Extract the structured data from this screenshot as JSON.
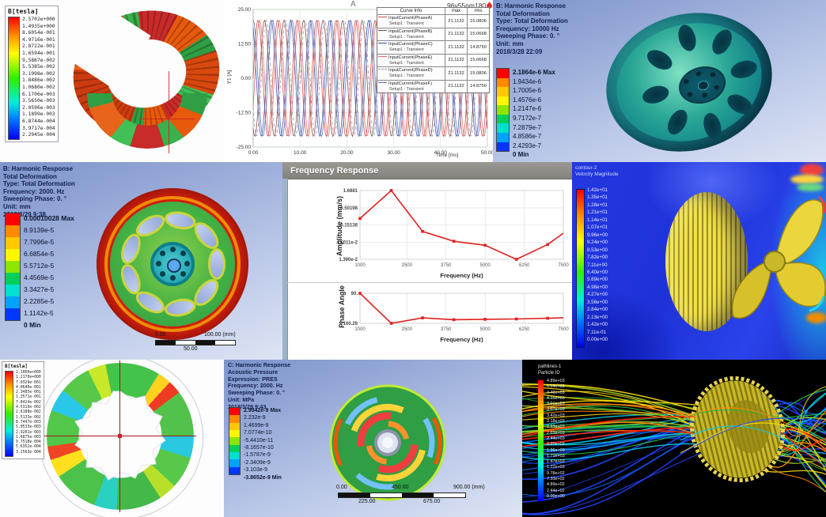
{
  "colors": {
    "ansys_bands": [
      "#ff0000",
      "#ff8a00",
      "#ffc800",
      "#fff600",
      "#8ce600",
      "#00d05a",
      "#00e0d0",
      "#00a2ff",
      "#0036ff"
    ],
    "plot_red": "#e02020"
  },
  "panels": {
    "maxwell_stator": {
      "legend_title": "B[tesla]",
      "legend_values": [
        "2.5702e+000",
        "1.4935e+000",
        "8.6054e-001",
        "4.9716e-001",
        "2.8722e-001",
        "1.6594e-001",
        "9.5867e-002",
        "5.5385e-002",
        "3.1998e-002",
        "1.8486e-002",
        "1.0680e-002",
        "6.1706e-003",
        "3.5650e-003",
        "2.0596e-003",
        "1.1899e-003",
        "6.8744e-004",
        "3.9717e-004",
        "2.2945e-004"
      ]
    },
    "current_plot": {
      "corner_label": "A",
      "title": "96v55nm180",
      "legend_table": {
        "headers": [
          "Curve Info",
          "max",
          "rms"
        ],
        "rows": [
          {
            "label": "InputCurrent(PhaseA)",
            "sub": "Setup1 : Transient",
            "max": "21.1132",
            "rms": "15.0806",
            "color": "#d04a4a",
            "dash": ""
          },
          {
            "label": "InputCurrent(PhaseB)",
            "sub": "Setup1 : Transient",
            "max": "21.1132",
            "rms": "15.0668",
            "color": "#8a4848",
            "dash": ""
          },
          {
            "label": "InputCurrent(PhaseC)",
            "sub": "Setup1 : Transient",
            "max": "21.1132",
            "rms": "14.8750",
            "color": "#3c50a0",
            "dash": ""
          },
          {
            "label": "InputCurrent(PhaseE)",
            "sub": "Setup1 : Transient",
            "max": "21.1132",
            "rms": "15.0668",
            "color": "#e06a6a",
            "dash": ""
          },
          {
            "label": "InputCurrent(PhaseD)",
            "sub": "Setup1 : Transient",
            "max": "21.1132",
            "rms": "15.0806",
            "color": "#9a9aa0",
            "dash": "4 3"
          },
          {
            "label": "InputCurrent(PhaseF)",
            "sub": "Setup1 : Transient",
            "max": "21.1132",
            "rms": "14.8750",
            "color": "#5a6cc0",
            "dash": ""
          }
        ]
      }
    },
    "harmonic_10000": {
      "header": [
        "B: Harmonic Response",
        "Total Deformation",
        "Type: Total Deformation",
        "Frequency: 10000 Hz",
        "Sweeping Phase: 0. °",
        "Unit: mm",
        "2018/3/28 22:09"
      ],
      "legend": [
        "2.1864e-6 Max",
        "1.9434e-6",
        "1.7005e-6",
        "1.4576e-6",
        "1.2147e-6",
        "9.7172e-7",
        "7.2879e-7",
        "4.8586e-7",
        "2.4293e-7",
        "0 Min"
      ]
    },
    "harmonic_2000": {
      "header": [
        "B: Harmonic Response",
        "Total Deformation",
        "Type: Total Deformation",
        "Frequency: 2000. Hz",
        "Sweeping Phase: 0. °",
        "Unit: mm",
        "2018/3/29 9:38"
      ],
      "legend": [
        "0.00010028 Max",
        "8.9139e-5",
        "7.7996e-5",
        "6.6854e-5",
        "5.5712e-5",
        "4.4569e-5",
        "3.3427e-5",
        "2.2285e-5",
        "1.1142e-5",
        "0 Min"
      ],
      "scale_bar": {
        "left": "0.00",
        "right": "100.00 (mm)",
        "mid": "50.00"
      }
    },
    "freq_response_window": {
      "title": "Frequency Response"
    },
    "cfd_velocity": {
      "legend_title_lines": [
        "contour-2",
        "Velocity Magnitude"
      ],
      "legend_values": [
        "1.42e+01",
        "1.35e+01",
        "1.28e+01",
        "1.21e+01",
        "1.14e+01",
        "1.07e+01",
        "9.96e+00",
        "9.24e+00",
        "8.53e+00",
        "7.82e+00",
        "7.11e+00",
        "6.40e+00",
        "5.69e+00",
        "4.98e+00",
        "4.27e+00",
        "3.56e+00",
        "2.84e+00",
        "2.13e+00",
        "1.42e+00",
        "7.11e-01",
        "0.00e+00"
      ]
    },
    "maxwell_rotor": {
      "legend_title": "B[tesla]",
      "legend_values": [
        "2.1060e+000",
        "1.2170e+000",
        "7.0329e-001",
        "4.0640e-001",
        "2.3485e-001",
        "1.3571e-001",
        "7.8424e-002",
        "4.5319e-002",
        "2.6188e-002",
        "1.5133e-002",
        "8.7447e-003",
        "5.0533e-003",
        "2.9201e-003",
        "1.6875e-003",
        "9.7518e-004",
        "5.6352e-004",
        "3.2563e-004"
      ]
    },
    "acoustic": {
      "header": [
        "C: Harmonic Response",
        "Acoustic Pressure",
        "Expression: PRES",
        "Frequency: 2000. Hz",
        "Sweeping Phase: 0. °",
        "Unit: MPa",
        "2018/3/29 9:43"
      ],
      "legend": [
        "2.9942e-9 Max",
        "2.232e-9",
        "1.4699e-9",
        "7.0774e-10",
        "-5.4410e-11",
        "-8.1657e-10",
        "-1.5787e-9",
        "-2.3409e-9",
        "-3.103e-9",
        "-3.8652e-9 Min"
      ],
      "scale_bar": {
        "left": "0.00",
        "mid_top": "450.00",
        "right": "900.00 (mm)",
        "q1": "225.00",
        "q3": "675.00"
      }
    },
    "pathlines": {
      "legend_title_lines": [
        "pathlines-1",
        "Particle ID"
      ],
      "legend_values": [
        "4.89e+03",
        "4.64e+03",
        "4.40e+03",
        "4.15e+03",
        "3.91e+03",
        "3.67e+03",
        "3.42e+03",
        "3.18e+03",
        "2.93e+03",
        "2.69e+03",
        "2.44e+03",
        "2.20e+03",
        "1.96e+03",
        "1.71e+03",
        "1.47e+03",
        "1.22e+03",
        "9.78e+02",
        "7.33e+02",
        "4.89e+02",
        "2.44e+02",
        "0.00e+00"
      ],
      "bundles": [
        {
          "color": "#2244ff",
          "count": 10,
          "band": [
            115,
            195
          ]
        },
        {
          "color": "#0066ff",
          "count": 6,
          "band": [
            95,
            180
          ]
        },
        {
          "color": "#00ccee",
          "count": 6,
          "band": [
            75,
            150
          ]
        },
        {
          "color": "#22bb44",
          "count": 8,
          "band": [
            40,
            120
          ]
        },
        {
          "color": "#99cc22",
          "count": 5,
          "band": [
            30,
            100
          ]
        },
        {
          "color": "#ffdd00",
          "count": 6,
          "band": [
            20,
            90
          ]
        },
        {
          "color": "#ff8800",
          "count": 4,
          "band": [
            50,
            110
          ]
        },
        {
          "color": "#ff2200",
          "count": 3,
          "band": [
            88,
            130
          ]
        }
      ]
    }
  },
  "chart_data": [
    {
      "type": "line",
      "title": "96v55nm180",
      "xlabel": "Time [ms]",
      "ylabel": "Y1 [A]",
      "xlim": [
        0,
        50
      ],
      "ylim": [
        -25,
        25
      ],
      "xticks": [
        0,
        10,
        20,
        30,
        40,
        50
      ],
      "yticks": [
        25,
        12.5,
        0,
        -12.5,
        -25
      ],
      "xtick_labels": [
        "0.00",
        "10.00",
        "20.00",
        "30.00",
        "40.00",
        "50.00"
      ],
      "ytick_labels": [
        "25.00",
        "12.50",
        "0.00",
        "-12.50",
        "-25.00"
      ],
      "waveform": {
        "amplitude": 21.1132,
        "period_ms": 4.1667
      },
      "series": [
        {
          "name": "InputCurrent(PhaseA)",
          "phase_deg": 0,
          "color": "#d04a4a",
          "dash": ""
        },
        {
          "name": "InputCurrent(PhaseB)",
          "phase_deg": -120,
          "color": "#8a4848",
          "dash": ""
        },
        {
          "name": "InputCurrent(PhaseC)",
          "phase_deg": -240,
          "color": "#3c50a0",
          "dash": ""
        },
        {
          "name": "InputCurrent(PhaseE)",
          "phase_deg": -30,
          "color": "#e06a6a",
          "dash": ""
        },
        {
          "name": "InputCurrent(PhaseD)",
          "phase_deg": -150,
          "color": "#9a9aa0",
          "dash": "4 3"
        },
        {
          "name": "InputCurrent(PhaseF)",
          "phase_deg": -270,
          "color": "#5a6cc0",
          "dash": ""
        }
      ]
    },
    {
      "type": "line",
      "title": "Frequency Response - Amplitude",
      "ylabel": "Amplitude (mm/s)",
      "xlabel": "Frequency (Hz)",
      "yscale": "log",
      "x": [
        1000,
        2000,
        3000,
        4000,
        5000,
        6000,
        7000,
        7500
      ],
      "y": [
        0.24,
        1.6881,
        0.097,
        0.049,
        0.037,
        0.0139,
        0.039,
        0.086
      ],
      "marker_x": [
        1000,
        2000,
        3000,
        4000,
        5000,
        6000,
        7000
      ],
      "yticks": [
        1.6881,
        0.50198,
        0.15138,
        0.046011,
        0.0139
      ],
      "ytick_labels": [
        "1.6881",
        "0.50198",
        "0.15138",
        "4.6011e-2",
        "1.390e-2"
      ],
      "xticks": [
        1000,
        2500,
        3750,
        5000,
        6250,
        7500
      ],
      "xtick_labels": [
        "1000",
        "2500",
        "3750",
        "5000",
        "6250",
        "7500"
      ],
      "xlim": [
        1000,
        7500
      ],
      "ylim": [
        0.0139,
        1.6881
      ],
      "color": "#e02020"
    },
    {
      "type": "line",
      "title": "Frequency Response - Phase",
      "ylabel": "Phase Angle",
      "xlabel": "Frequency (Hz)",
      "x": [
        1000,
        2000,
        3000,
        4000,
        5000,
        6000,
        7000,
        7500
      ],
      "y": [
        90,
        -160.29,
        -115,
        -130,
        -127,
        -124,
        -118,
        -115
      ],
      "marker_x": [
        1000,
        2000,
        3000,
        4000,
        5000,
        6000,
        7000
      ],
      "yticks": [
        90,
        -160.29
      ],
      "ytick_labels": [
        "90.",
        "-160.29"
      ],
      "xticks": [
        1000,
        2500,
        3750,
        5000,
        6250,
        7500
      ],
      "xtick_labels": [
        "1000",
        "2500",
        "3750",
        "5000",
        "6250",
        "7500"
      ],
      "xlim": [
        1000,
        7500
      ],
      "ylim": [
        -160.29,
        90
      ],
      "color": "#e02020"
    }
  ]
}
